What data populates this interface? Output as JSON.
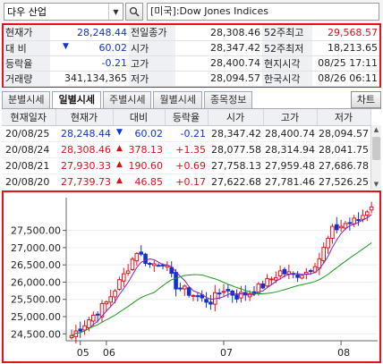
{
  "search": {
    "value": "다우 산업",
    "name": "[미국]:Dow Jones Indices"
  },
  "quote": {
    "rows": [
      [
        {
          "l": "현재가"
        },
        {
          "v": "28,248.44",
          "c": "blue"
        },
        {
          "l": "전일종가"
        },
        {
          "v": "28,308.46"
        },
        {
          "l": "52주최고"
        },
        {
          "v": "29,568.57",
          "c": "red"
        }
      ],
      [
        {
          "l": "대  비"
        },
        {
          "v": "60.02",
          "c": "blue",
          "tri": "▼"
        },
        {
          "l": "시가"
        },
        {
          "v": "28,347.42"
        },
        {
          "l": "52주최저"
        },
        {
          "v": "18,213.65"
        }
      ],
      [
        {
          "l": "등락율"
        },
        {
          "v": "-0.21",
          "c": "blue"
        },
        {
          "l": "고가"
        },
        {
          "v": "28,400.74"
        },
        {
          "l": "현지시각"
        },
        {
          "v": "08/25 17:11"
        }
      ],
      [
        {
          "l": "거래량"
        },
        {
          "v": "341,134,365"
        },
        {
          "l": "저가"
        },
        {
          "v": "28,094.57"
        },
        {
          "l": "한국시각"
        },
        {
          "v": "08/26 06:11"
        }
      ]
    ]
  },
  "tabs": [
    "분별시세",
    "일별시세",
    "주별시세",
    "월별시세",
    "종목정보"
  ],
  "active_tab": "일별시세",
  "chart_button": "차트",
  "daily": {
    "headers": [
      "현재일자",
      "현재가",
      "대비",
      "등락율",
      "시가",
      "고가",
      "저가"
    ],
    "rows": [
      {
        "date": "20/08/25",
        "price": "28,248.44",
        "dir": "down",
        "chg": "60.02",
        "pct": "-0.21",
        "open": "28,347.42",
        "high": "28,400.74",
        "low": "28,094.57"
      },
      {
        "date": "20/08/24",
        "price": "28,308.46",
        "dir": "up",
        "chg": "378.13",
        "pct": "+1.35",
        "open": "28,077.58",
        "high": "28,314.94",
        "low": "28,041.75"
      },
      {
        "date": "20/08/21",
        "price": "27,930.33",
        "dir": "up",
        "chg": "190.60",
        "pct": "+0.69",
        "open": "27,758.13",
        "high": "27,959.48",
        "low": "27,686.78"
      },
      {
        "date": "20/08/20",
        "price": "27,739.73",
        "dir": "up",
        "chg": "46.85",
        "pct": "+0.17",
        "open": "27,622.68",
        "high": "27,781.46",
        "low": "27,526.25"
      }
    ]
  },
  "chart_data": {
    "type": "candlestick",
    "y_ticks": [
      "27,500.00",
      "27,000.00",
      "26,500.00",
      "26,000.00",
      "25,500.00",
      "25,000.00",
      "24,500.00"
    ],
    "x_ticks": [
      "05",
      "06",
      "07",
      "08"
    ],
    "ylim": [
      24300,
      28450
    ],
    "colors": {
      "up": "#e8101b",
      "down": "#1133cc",
      "ma_short": "#8a1fb0",
      "ma_long": "#1c9a1c"
    }
  }
}
